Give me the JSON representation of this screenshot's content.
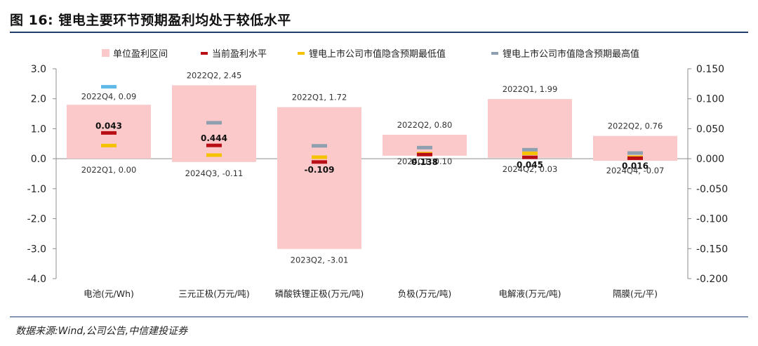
{
  "title": "图 16: 锂电主要环节预期盈利均处于较低水平",
  "source": "数据来源:Wind,公司公告,中信建投证券",
  "colors": {
    "range": "#fbc9c9",
    "current": "#b80f16",
    "min": "#f5c200",
    "max_first": "#60b8e8",
    "max": "#8e9fb0",
    "axis": "#8c8c8c",
    "rule": "#1f3f6e"
  },
  "legend": [
    {
      "key": "range",
      "label": "单位盈利区间",
      "shape": "square"
    },
    {
      "key": "current",
      "label": "当前盈利水平",
      "shape": "dash"
    },
    {
      "key": "min",
      "label": "锂电上市公司市值隐含预期最低值",
      "shape": "dash"
    },
    {
      "key": "max",
      "label": "锂电上市公司市值隐含预期最高值",
      "shape": "dash"
    }
  ],
  "chart_data": {
    "type": "bar",
    "title": "图 16: 锂电主要环节预期盈利均处于较低水平",
    "categories": [
      "电池(元/Wh)",
      "三元正极(万元/吨)",
      "磷酸铁锂正极(万元/吨)",
      "负极(万元/吨)",
      "电解液(万元/吨)",
      "隔膜(元/平)"
    ],
    "left_axis": {
      "min": -4.0,
      "max": 3.0,
      "step": 1.0,
      "ticks": [
        "3.0",
        "2.0",
        "1.0",
        "0.0",
        "-1.0",
        "-2.0",
        "-3.0",
        "-4.0"
      ]
    },
    "right_axis": {
      "min": -0.2,
      "max": 0.15,
      "step": 0.05,
      "ticks": [
        "0.150",
        "0.100",
        "0.050",
        "0.000",
        "-0.050",
        "-0.100",
        "-0.150",
        "-0.200"
      ],
      "note": "电池 uses the right axis; other categories use the left axis"
    },
    "series": [
      {
        "name": "单位盈利区间",
        "kind": "range",
        "high": [
          0.09,
          2.45,
          1.72,
          0.8,
          1.99,
          0.76
        ],
        "low": [
          0.0,
          -0.11,
          -3.01,
          0.1,
          0.03,
          -0.07
        ],
        "high_labels": [
          "2022Q4, 0.09",
          "2022Q2, 2.45",
          "2022Q1, 1.72",
          "2022Q2, 0.80",
          "2022Q1, 1.99",
          "2022Q2, 0.76"
        ],
        "low_labels": [
          "2022Q1, 0.00",
          "2024Q3, -0.11",
          "2023Q2, -3.01",
          "2024Q1, 0.10",
          "2024Q2, 0.03",
          "2024Q4, -0.07"
        ]
      },
      {
        "name": "当前盈利水平",
        "kind": "marker",
        "values": [
          0.043,
          0.444,
          -0.109,
          0.138,
          0.045,
          0.016
        ],
        "labels": [
          "0.043",
          "0.444",
          "-0.109",
          "0.138",
          "0.045",
          "0.016"
        ]
      },
      {
        "name": "锂电上市公司市值隐含预期最低值",
        "kind": "marker",
        "values": [
          0.022,
          0.12,
          0.05,
          0.17,
          0.18,
          0.05
        ]
      },
      {
        "name": "锂电上市公司市值隐含预期最高值",
        "kind": "marker",
        "values": [
          0.12,
          1.2,
          0.43,
          0.37,
          0.3,
          0.19
        ]
      }
    ],
    "legend_position": "top",
    "grid": false
  }
}
